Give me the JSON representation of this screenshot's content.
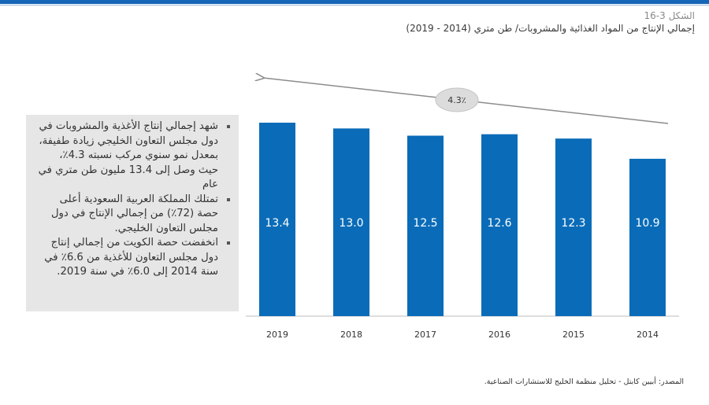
{
  "header": {
    "figure_label": "الشكل 3-16",
    "title": "إجمالي الإنتاج من المواد الغذائية والمشروبات/ طن متري (2014 - 2019)"
  },
  "notes": [
    "شهد إجمالي إنتاج الأغذية والمشروبات في دول مجلس التعاون الخليجي زيادة طفيفة، بمعدل نمو سنوي مركب نسبته 4.3٪، حيث وصل إلى 13.4 مليون طن متري في عام",
    "تمتلك المملكة العربية السعودية أعلى حصة (72٪) من إجمالي الإنتاج في دول مجلس التعاون الخليجي.",
    "انخفضت حصة الكويت من إجمالي إنتاج دول مجلس التعاون للأغذية من 6.6٪ في سنة 2014 إلى 6.0٪ في سنة 2019."
  ],
  "source": "المصدر: أبيين كابتل - تحليل منظمة الخليج للاستشارات الصناعية.",
  "colors": {
    "bar": "#0a6cb8",
    "accent": "#1565b8",
    "panel": "#e6e6e6",
    "arrow": "#8c8c8c"
  },
  "chart_data": {
    "type": "bar",
    "categories": [
      "2019",
      "2018",
      "2017",
      "2016",
      "2015",
      "2014"
    ],
    "values": [
      13.4,
      13.0,
      12.5,
      12.6,
      12.3,
      10.9
    ],
    "value_labels": [
      "13.4",
      "13.0",
      "12.5",
      "12.6",
      "12.3",
      "10.9"
    ],
    "cagr_label": "4.3٪",
    "ylim": [
      0,
      13.4
    ],
    "grid": false,
    "legend": "none"
  }
}
